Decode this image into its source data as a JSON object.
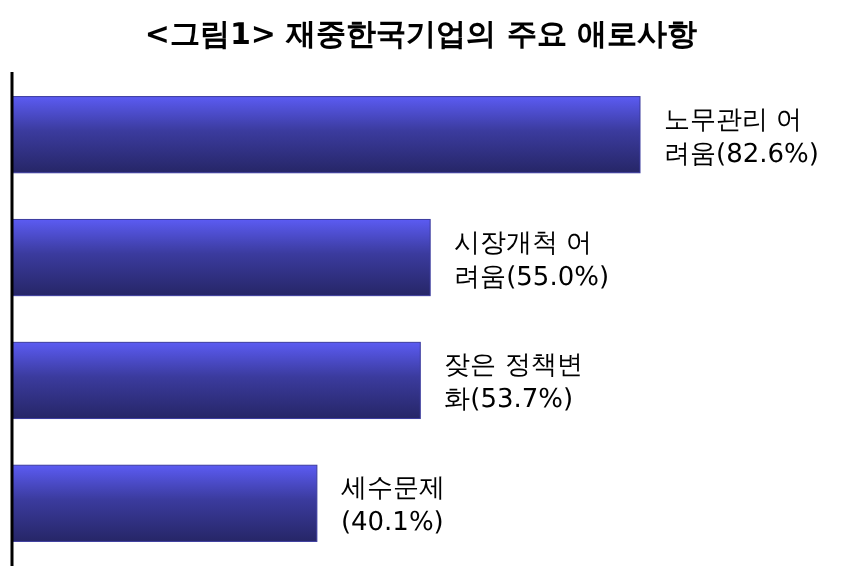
{
  "chart_data": {
    "type": "bar",
    "orientation": "horizontal",
    "title": "<그림1> 재중한국기업의 주요 애로사항",
    "categories": [
      null,
      null,
      null,
      null
    ],
    "values": [
      82.6,
      55.0,
      53.7,
      40.1
    ],
    "color": "#3b3b9e",
    "value_labels": [
      "노무관리 어\n려움(82.6%)",
      "시장개척 어\n려움(55.0%)",
      "잦은 정책변\n화(53.7%)",
      "세수문제\n(40.1%)"
    ],
    "data_labels": false
  }
}
